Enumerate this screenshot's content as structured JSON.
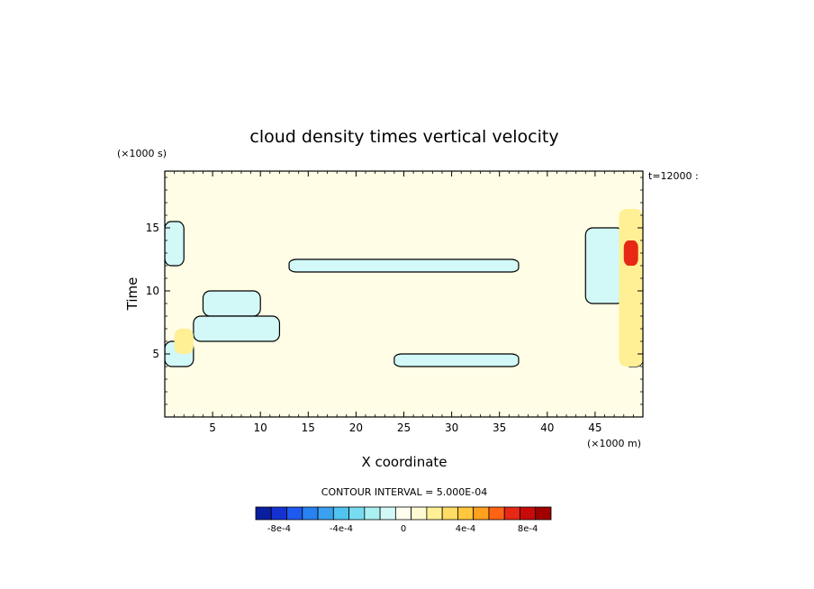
{
  "chart_data": {
    "type": "heatmap",
    "title": "cloud density times vertical velocity",
    "xlabel": "X coordinate",
    "ylabel": "Time",
    "x_unit_label": "(×1000 m)",
    "y_unit_label": "(×1000 s)",
    "time_label": "t=12000 :",
    "xlim": [
      0,
      50
    ],
    "ylim": [
      0,
      19.5
    ],
    "x_ticks": [
      5,
      10,
      15,
      20,
      25,
      30,
      35,
      40,
      45
    ],
    "y_ticks": [
      5,
      10,
      15
    ],
    "contour_interval_label": "CONTOUR INTERVAL = 5.000E-04",
    "contour_interval": 0.0005,
    "colorbar": {
      "labels": [
        {
          "text": "-8e-4",
          "value": -0.0008
        },
        {
          "text": "-4e-4",
          "value": -0.0004
        },
        {
          "text": "0",
          "value": 0
        },
        {
          "text": "4e-4",
          "value": 0.0004
        },
        {
          "text": "8e-4",
          "value": 0.0008
        }
      ],
      "colors": [
        "#0a1ea0",
        "#1432d2",
        "#1e5af0",
        "#2882f0",
        "#3ca0f0",
        "#50c3f0",
        "#78dcf0",
        "#aaf0f0",
        "#d2f8f8",
        "#fffff0",
        "#fffad2",
        "#fff096",
        "#ffdc64",
        "#ffc83c",
        "#ffa01e",
        "#ff6414",
        "#e62814",
        "#c80a0a",
        "#a00000"
      ],
      "background_color": "#fffde6"
    },
    "regions": [
      {
        "sign": "negative",
        "x": [
          0,
          2
        ],
        "y": [
          12,
          15.5
        ]
      },
      {
        "sign": "negative",
        "x": [
          0,
          3
        ],
        "y": [
          4,
          6
        ]
      },
      {
        "sign": "negative",
        "x": [
          4,
          10
        ],
        "y": [
          8,
          10
        ]
      },
      {
        "sign": "negative",
        "x": [
          3,
          12
        ],
        "y": [
          6,
          8
        ]
      },
      {
        "sign": "negative",
        "x": [
          13,
          37
        ],
        "y": [
          11.5,
          12.5
        ]
      },
      {
        "sign": "negative",
        "x": [
          24,
          37
        ],
        "y": [
          4,
          5
        ]
      },
      {
        "sign": "negative",
        "x": [
          44,
          48
        ],
        "y": [
          9,
          15
        ]
      },
      {
        "sign": "negative",
        "x": [
          48,
          50
        ],
        "y": [
          4,
          7
        ]
      },
      {
        "sign": "positive",
        "x": [
          1,
          3
        ],
        "y": [
          5,
          7
        ]
      },
      {
        "sign": "positive",
        "x": [
          47.5,
          50
        ],
        "y": [
          4,
          16.5
        ]
      },
      {
        "sign": "positive_strong",
        "x": [
          48,
          49.5
        ],
        "y": [
          12,
          14
        ]
      }
    ]
  }
}
